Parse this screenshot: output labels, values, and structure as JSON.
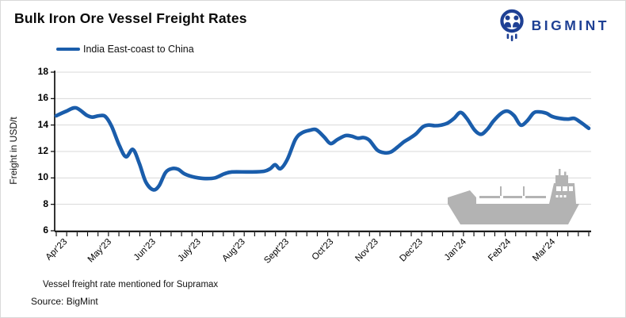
{
  "header": {
    "title": "Bulk Iron Ore Vessel Freight Rates"
  },
  "brand": {
    "name": "BIGMINT",
    "color": "#1e4094"
  },
  "legend": {
    "label": "India East-coast to China",
    "swatch_color": "#1a5dab"
  },
  "footnotes": {
    "note": "Vessel freight rate mentioned for Supramax",
    "source": "Source:  BigMint"
  },
  "chart_data": {
    "type": "line",
    "title": "Bulk Iron Ore Vessel Freight Rates",
    "xlabel": "",
    "ylabel": "Freight in USD/t",
    "ylim": [
      6,
      18
    ],
    "y_ticks": [
      6,
      8,
      10,
      12,
      14,
      16,
      18
    ],
    "categories": [
      "Apr'23",
      "May'23",
      "Jun'23",
      "July'23",
      "Aug'23",
      "Sept'23",
      "Oct'23",
      "Nov'23",
      "Dec'23",
      "Jan'24",
      "Feb'24",
      "Mar'24"
    ],
    "minor_tick_count": 52,
    "grid": "horizontal",
    "gridline_color": "#d8d8d8",
    "legend_position": "top-left",
    "annotations": [
      "gray bulk-carrier ship silhouette at bottom right of plot"
    ],
    "series": [
      {
        "name": "India East-coast to China",
        "color": "#1a5dab",
        "x_unit": "fraction of axis from start Apr'23 (0) to end Mar'24 (1), weekly data",
        "points": [
          [
            0.0,
            14.7
          ],
          [
            0.019,
            15.05
          ],
          [
            0.037,
            15.3
          ],
          [
            0.057,
            14.75
          ],
          [
            0.068,
            14.6
          ],
          [
            0.08,
            14.7
          ],
          [
            0.092,
            14.65
          ],
          [
            0.104,
            13.9
          ],
          [
            0.119,
            12.4
          ],
          [
            0.131,
            11.6
          ],
          [
            0.144,
            12.15
          ],
          [
            0.156,
            11.1
          ],
          [
            0.168,
            9.7
          ],
          [
            0.182,
            9.1
          ],
          [
            0.193,
            9.4
          ],
          [
            0.205,
            10.4
          ],
          [
            0.217,
            10.7
          ],
          [
            0.229,
            10.65
          ],
          [
            0.241,
            10.3
          ],
          [
            0.26,
            10.05
          ],
          [
            0.28,
            9.95
          ],
          [
            0.298,
            10.0
          ],
          [
            0.315,
            10.3
          ],
          [
            0.33,
            10.45
          ],
          [
            0.365,
            10.45
          ],
          [
            0.39,
            10.5
          ],
          [
            0.402,
            10.7
          ],
          [
            0.411,
            11.0
          ],
          [
            0.421,
            10.7
          ],
          [
            0.434,
            11.4
          ],
          [
            0.449,
            12.9
          ],
          [
            0.461,
            13.4
          ],
          [
            0.476,
            13.6
          ],
          [
            0.488,
            13.65
          ],
          [
            0.503,
            13.1
          ],
          [
            0.515,
            12.6
          ],
          [
            0.528,
            12.9
          ],
          [
            0.543,
            13.2
          ],
          [
            0.555,
            13.15
          ],
          [
            0.567,
            13.0
          ],
          [
            0.577,
            13.05
          ],
          [
            0.588,
            12.85
          ],
          [
            0.603,
            12.1
          ],
          [
            0.617,
            11.9
          ],
          [
            0.628,
            11.95
          ],
          [
            0.64,
            12.3
          ],
          [
            0.652,
            12.7
          ],
          [
            0.664,
            13.0
          ],
          [
            0.676,
            13.35
          ],
          [
            0.688,
            13.85
          ],
          [
            0.699,
            14.0
          ],
          [
            0.711,
            13.95
          ],
          [
            0.723,
            14.0
          ],
          [
            0.735,
            14.15
          ],
          [
            0.747,
            14.5
          ],
          [
            0.759,
            14.95
          ],
          [
            0.771,
            14.5
          ],
          [
            0.786,
            13.6
          ],
          [
            0.798,
            13.3
          ],
          [
            0.81,
            13.7
          ],
          [
            0.821,
            14.3
          ],
          [
            0.836,
            14.9
          ],
          [
            0.848,
            15.05
          ],
          [
            0.86,
            14.7
          ],
          [
            0.872,
            14.0
          ],
          [
            0.884,
            14.3
          ],
          [
            0.896,
            14.9
          ],
          [
            0.905,
            15.0
          ],
          [
            0.92,
            14.9
          ],
          [
            0.931,
            14.65
          ],
          [
            0.946,
            14.5
          ],
          [
            0.961,
            14.45
          ],
          [
            0.973,
            14.5
          ],
          [
            0.985,
            14.2
          ],
          [
            1.0,
            13.75
          ]
        ]
      }
    ]
  }
}
